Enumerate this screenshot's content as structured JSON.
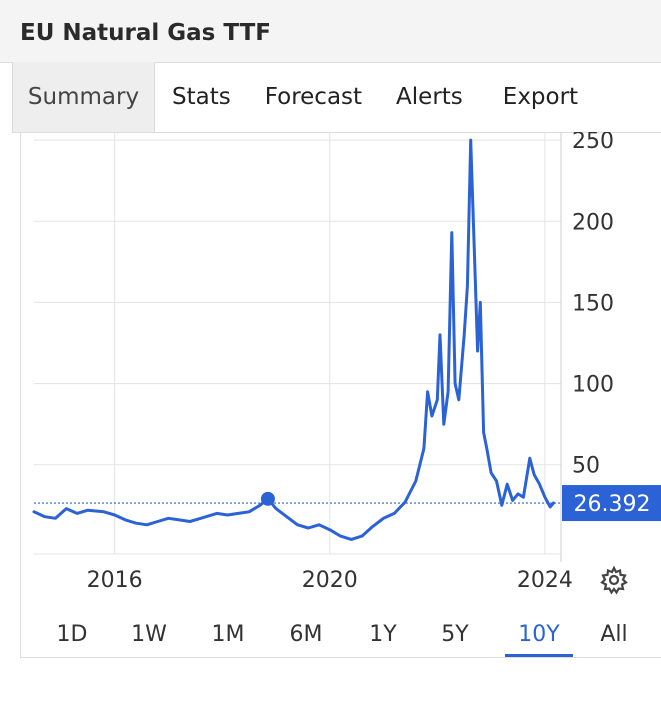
{
  "header": {
    "title": "EU Natural Gas TTF"
  },
  "tabs": [
    {
      "label": "Summary",
      "active": true
    },
    {
      "label": "Stats",
      "active": false
    },
    {
      "label": "Forecast",
      "active": false
    },
    {
      "label": "Alerts",
      "active": false
    },
    {
      "label": "Export",
      "active": false
    }
  ],
  "ranges": [
    {
      "label": "1D",
      "active": false
    },
    {
      "label": "1W",
      "active": false
    },
    {
      "label": "1M",
      "active": false
    },
    {
      "label": "6M",
      "active": false
    },
    {
      "label": "1Y",
      "active": false
    },
    {
      "label": "5Y",
      "active": false
    },
    {
      "label": "10Y",
      "active": true
    },
    {
      "label": "All",
      "active": false
    }
  ],
  "settings": {
    "icon": "gear-icon"
  },
  "colors": {
    "line": "#2b63d6",
    "accent": "#2b63d6",
    "grid": "#e3e3e3"
  },
  "chart_data": {
    "type": "line",
    "series": [
      {
        "color": "#2b63d6",
        "points": [
          [
            2014.5,
            21
          ],
          [
            2014.7,
            18
          ],
          [
            2014.9,
            17
          ],
          [
            2015.1,
            23
          ],
          [
            2015.3,
            20
          ],
          [
            2015.5,
            22
          ],
          [
            2015.8,
            21
          ],
          [
            2016.0,
            19
          ],
          [
            2016.2,
            16
          ],
          [
            2016.4,
            14
          ],
          [
            2016.6,
            13
          ],
          [
            2016.8,
            15
          ],
          [
            2017.0,
            17
          ],
          [
            2017.2,
            16
          ],
          [
            2017.4,
            15
          ],
          [
            2017.6,
            17
          ],
          [
            2017.9,
            20
          ],
          [
            2018.1,
            19
          ],
          [
            2018.3,
            20
          ],
          [
            2018.5,
            21
          ],
          [
            2018.7,
            25
          ],
          [
            2018.85,
            29
          ],
          [
            2019.0,
            23
          ],
          [
            2019.2,
            18
          ],
          [
            2019.4,
            13
          ],
          [
            2019.6,
            11
          ],
          [
            2019.8,
            13
          ],
          [
            2020.0,
            10
          ],
          [
            2020.2,
            6
          ],
          [
            2020.4,
            4
          ],
          [
            2020.6,
            6
          ],
          [
            2020.8,
            12
          ],
          [
            2021.0,
            17
          ],
          [
            2021.2,
            20
          ],
          [
            2021.4,
            27
          ],
          [
            2021.6,
            40
          ],
          [
            2021.75,
            60
          ],
          [
            2021.82,
            95
          ],
          [
            2021.9,
            80
          ],
          [
            2022.0,
            90
          ],
          [
            2022.05,
            130
          ],
          [
            2022.12,
            75
          ],
          [
            2022.2,
            95
          ],
          [
            2022.27,
            193
          ],
          [
            2022.33,
            100
          ],
          [
            2022.4,
            90
          ],
          [
            2022.5,
            130
          ],
          [
            2022.56,
            160
          ],
          [
            2022.62,
            250
          ],
          [
            2022.68,
            190
          ],
          [
            2022.75,
            120
          ],
          [
            2022.8,
            150
          ],
          [
            2022.86,
            70
          ],
          [
            2022.92,
            60
          ],
          [
            2023.0,
            45
          ],
          [
            2023.1,
            40
          ],
          [
            2023.2,
            25
          ],
          [
            2023.3,
            38
          ],
          [
            2023.4,
            28
          ],
          [
            2023.5,
            32
          ],
          [
            2023.6,
            30
          ],
          [
            2023.72,
            54
          ],
          [
            2023.8,
            44
          ],
          [
            2023.9,
            38
          ],
          [
            2024.0,
            30
          ],
          [
            2024.1,
            24
          ],
          [
            2024.16,
            26.392
          ]
        ],
        "marker": [
          2018.85,
          29
        ]
      }
    ],
    "last_value": 26.392,
    "last_value_label": "26.392",
    "x_ticks": [
      {
        "value": 2016,
        "label": "2016"
      },
      {
        "value": 2020,
        "label": "2020"
      },
      {
        "value": 2024,
        "label": "2024"
      }
    ],
    "y_ticks": [
      {
        "value": 50,
        "label": "50"
      },
      {
        "value": 100,
        "label": "100"
      },
      {
        "value": 150,
        "label": "150"
      },
      {
        "value": 200,
        "label": "200"
      },
      {
        "value": 250,
        "label": "250"
      }
    ],
    "xlim": [
      2014.5,
      2024.3
    ],
    "ylim": [
      -5,
      255
    ],
    "grid": true,
    "legend": "none",
    "y_axis_side": "right"
  }
}
